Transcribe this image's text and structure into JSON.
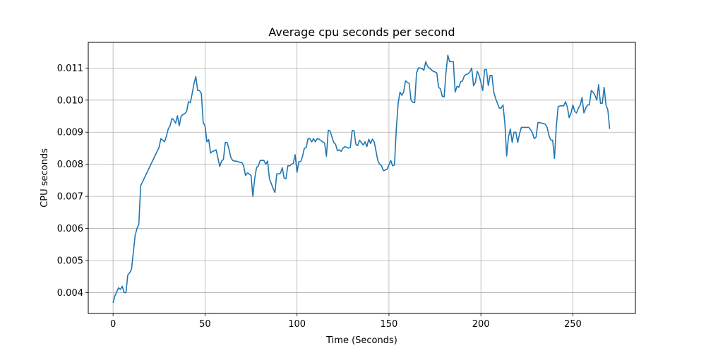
{
  "chart_data": {
    "type": "line",
    "title": "Average cpu seconds per second",
    "xlabel": "Time (Seconds)",
    "ylabel": "CPU seconds",
    "xlim": [
      -13.5,
      284
    ],
    "ylim": [
      0.00335,
      0.0118
    ],
    "xticks": [
      0,
      50,
      100,
      150,
      200,
      250
    ],
    "xtick_labels": [
      "0",
      "50",
      "100",
      "150",
      "200",
      "250"
    ],
    "yticks": [
      0.004,
      0.005,
      0.006,
      0.007,
      0.008,
      0.009,
      0.01,
      0.011
    ],
    "ytick_labels": [
      "0.004",
      "0.005",
      "0.006",
      "0.007",
      "0.008",
      "0.009",
      "0.010",
      "0.011"
    ],
    "grid": true,
    "legend": "none",
    "line_color": "#1f77b4",
    "series": [
      {
        "x": [
          0,
          1,
          2,
          3,
          4,
          5,
          6,
          7,
          8,
          9,
          10,
          11,
          12,
          13,
          14,
          15,
          16,
          17,
          18,
          19,
          20,
          21,
          22,
          23,
          24,
          25,
          26,
          27,
          28,
          29,
          30,
          31,
          32,
          33,
          34,
          35,
          36,
          37,
          38,
          39,
          40,
          41,
          42,
          43,
          44,
          45,
          46,
          47,
          48,
          49,
          50,
          51,
          52,
          53,
          54,
          55,
          56,
          57,
          58,
          59,
          60,
          61,
          62,
          63,
          64,
          65,
          66,
          67,
          68,
          69,
          70,
          71,
          72,
          73,
          74,
          75,
          76,
          77,
          78,
          79,
          80,
          81,
          82,
          83,
          84,
          85,
          86,
          87,
          88,
          89,
          90,
          91,
          92,
          93,
          94,
          95,
          96,
          97,
          98,
          99,
          100,
          101,
          102,
          103,
          104,
          105,
          106,
          107,
          108,
          109,
          110,
          111,
          112,
          113,
          114,
          115,
          116,
          117,
          118,
          119,
          120,
          121,
          122,
          123,
          124,
          125,
          126,
          127,
          128,
          129,
          130,
          131,
          132,
          133,
          134,
          135,
          136,
          137,
          138,
          139,
          140,
          141,
          142,
          143,
          144,
          145,
          146,
          147,
          148,
          149,
          150,
          151,
          152,
          153,
          154,
          155,
          156,
          157,
          158,
          159,
          160,
          161,
          162,
          163,
          164,
          165,
          166,
          167,
          168,
          169,
          170,
          171,
          172,
          173,
          174,
          175,
          176,
          177,
          178,
          179,
          180,
          181,
          182,
          183,
          184,
          185,
          186,
          187,
          188,
          189,
          190,
          191,
          192,
          193,
          194,
          195,
          196,
          197,
          198,
          199,
          200,
          201,
          202,
          203,
          204,
          205,
          206,
          207,
          208,
          209,
          210,
          211,
          212,
          213,
          214,
          215,
          216,
          217,
          218,
          219,
          220,
          221,
          222,
          223,
          224,
          225,
          226,
          227,
          228,
          229,
          230,
          231,
          232,
          233,
          234,
          235,
          236,
          237,
          238,
          239,
          240,
          241,
          242,
          243,
          244,
          245,
          246,
          247,
          248,
          249,
          250,
          251,
          252,
          253,
          254,
          255,
          256,
          257,
          258,
          259,
          260,
          261,
          262,
          263,
          264,
          265,
          266,
          267,
          268,
          269,
          270
        ],
        "values": [
          0.00368,
          0.0039,
          0.00403,
          0.00415,
          0.0041,
          0.0042,
          0.004,
          0.004,
          0.00455,
          0.00462,
          0.00472,
          0.00525,
          0.00578,
          0.006,
          0.00613,
          0.00733,
          0.00745,
          0.00757,
          0.00769,
          0.00781,
          0.00793,
          0.00805,
          0.00817,
          0.00829,
          0.00841,
          0.00853,
          0.0088,
          0.00875,
          0.0087,
          0.00888,
          0.0091,
          0.0092,
          0.00943,
          0.00938,
          0.00928,
          0.00951,
          0.0092,
          0.0095,
          0.00955,
          0.00958,
          0.00965,
          0.00995,
          0.00992,
          0.0102,
          0.01052,
          0.01073,
          0.0103,
          0.0103,
          0.0102,
          0.0093,
          0.0092,
          0.0087,
          0.00877,
          0.00835,
          0.0084,
          0.00842,
          0.00845,
          0.0082,
          0.00793,
          0.0081,
          0.00815,
          0.00868,
          0.00868,
          0.00848,
          0.00822,
          0.00812,
          0.0081,
          0.0081,
          0.00808,
          0.00806,
          0.00805,
          0.00795,
          0.00765,
          0.00773,
          0.0077,
          0.00765,
          0.007,
          0.00755,
          0.0079,
          0.00795,
          0.00812,
          0.00812,
          0.00812,
          0.008,
          0.0081,
          0.00755,
          0.0074,
          0.00725,
          0.00712,
          0.0077,
          0.0077,
          0.00772,
          0.00789,
          0.00757,
          0.00755,
          0.00795,
          0.00795,
          0.008,
          0.00803,
          0.0083,
          0.00775,
          0.00808,
          0.00808,
          0.00825,
          0.0085,
          0.00852,
          0.0088,
          0.0088,
          0.0087,
          0.0088,
          0.0087,
          0.0088,
          0.00878,
          0.00874,
          0.0087,
          0.00866,
          0.00825,
          0.00906,
          0.00904,
          0.00885,
          0.00868,
          0.00862,
          0.00842,
          0.00845,
          0.0084,
          0.0085,
          0.00855,
          0.00853,
          0.0085,
          0.00853,
          0.00905,
          0.00905,
          0.00862,
          0.00858,
          0.00875,
          0.00868,
          0.0086,
          0.0087,
          0.00855,
          0.00878,
          0.00865,
          0.00878,
          0.0087,
          0.0084,
          0.0081,
          0.008,
          0.00795,
          0.0078,
          0.00782,
          0.00785,
          0.00798,
          0.00812,
          0.00795,
          0.00798,
          0.0091,
          0.0099,
          0.01025,
          0.01015,
          0.01025,
          0.0106,
          0.01055,
          0.01052,
          0.01,
          0.00993,
          0.00992,
          0.01085,
          0.011,
          0.011,
          0.01098,
          0.01093,
          0.0112,
          0.01105,
          0.011,
          0.01095,
          0.0109,
          0.01088,
          0.01085,
          0.0104,
          0.01035,
          0.01012,
          0.0101,
          0.01085,
          0.0114,
          0.0112,
          0.0112,
          0.0112,
          0.01025,
          0.01043,
          0.0104,
          0.01057,
          0.0106,
          0.01076,
          0.0108,
          0.01082,
          0.01088,
          0.011,
          0.01045,
          0.01055,
          0.0109,
          0.01077,
          0.01055,
          0.0103,
          0.01095,
          0.01095,
          0.01045,
          0.01077,
          0.01077,
          0.01025,
          0.01005,
          0.0099,
          0.00975,
          0.00975,
          0.00985,
          0.0093,
          0.00826,
          0.00885,
          0.0091,
          0.00868,
          0.009,
          0.009,
          0.00868,
          0.00895,
          0.00915,
          0.00915,
          0.00915,
          0.00915,
          0.00915,
          0.00908,
          0.00898,
          0.0088,
          0.00885,
          0.0093,
          0.0093,
          0.00928,
          0.00927,
          0.00925,
          0.00915,
          0.0089,
          0.00875,
          0.00875,
          0.00818,
          0.00918,
          0.0098,
          0.00982,
          0.00982,
          0.00982,
          0.00995,
          0.00978,
          0.00945,
          0.0096,
          0.00985,
          0.00965,
          0.0096,
          0.00975,
          0.00985,
          0.01008,
          0.0096,
          0.00975,
          0.00985,
          0.00985,
          0.0103,
          0.01025,
          0.01015,
          0.01,
          0.01048,
          0.0099,
          0.0099,
          0.0104,
          0.00985,
          0.0097,
          0.0091
        ]
      }
    ]
  }
}
